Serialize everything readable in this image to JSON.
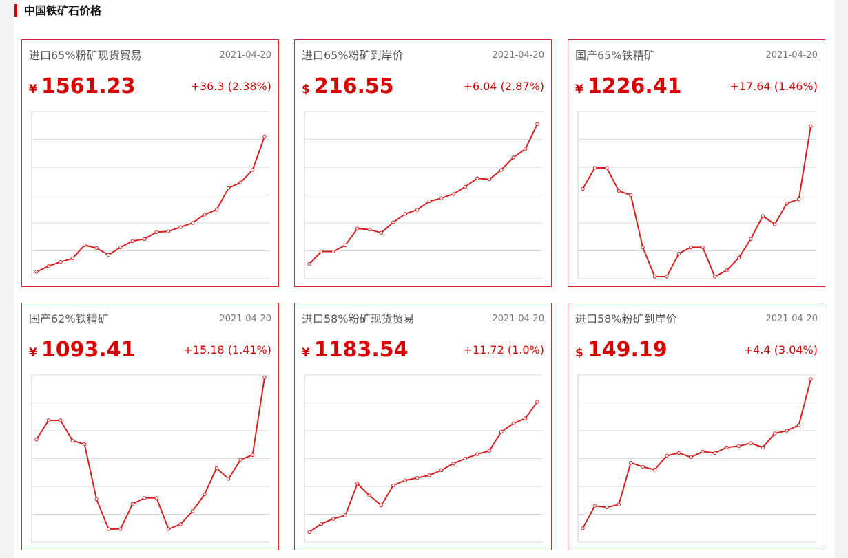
{
  "section": {
    "title": "中国铁矿石价格"
  },
  "colors": {
    "accent": "#d60000",
    "line": "#d81e1e"
  },
  "cards": [
    {
      "title": "进口65%粉矿现货贸易",
      "date": "2021-04-20",
      "currency": "¥",
      "price": "1561.23",
      "change": "+36.3 (2.38%)",
      "chart_data": {
        "type": "line",
        "grid": true,
        "ylim": [
          0,
          12
        ],
        "values": [
          0.5,
          0.9,
          1.2,
          1.45,
          2.4,
          2.2,
          1.7,
          2.25,
          2.7,
          2.85,
          3.35,
          3.4,
          3.7,
          4.0,
          4.6,
          4.95,
          6.5,
          6.9,
          7.8,
          10.2
        ]
      }
    },
    {
      "title": "进口65%粉矿到岸价",
      "date": "2021-04-20",
      "currency": "$",
      "price": "216.55",
      "change": "+6.04 (2.87%)",
      "chart_data": {
        "type": "line",
        "grid": true,
        "ylim": [
          0,
          8
        ],
        "values": [
          0.7,
          1.3,
          1.3,
          1.6,
          2.4,
          2.35,
          2.2,
          2.7,
          3.1,
          3.3,
          3.7,
          3.85,
          4.05,
          4.4,
          4.8,
          4.75,
          5.2,
          5.8,
          6.2,
          7.4
        ]
      }
    },
    {
      "title": "国产65%铁精矿",
      "date": "2021-04-20",
      "currency": "¥",
      "price": "1226.41",
      "change": "+17.64 (1.46%)",
      "chart_data": {
        "type": "line",
        "grid": true,
        "ylim": [
          0,
          4
        ],
        "values": [
          2.15,
          2.65,
          2.65,
          2.1,
          2.0,
          0.75,
          0.05,
          0.05,
          0.6,
          0.75,
          0.75,
          0.05,
          0.2,
          0.5,
          0.95,
          1.5,
          1.3,
          1.8,
          1.9,
          3.65
        ]
      }
    },
    {
      "title": "国产62%铁精矿",
      "date": "2021-04-20",
      "currency": "¥",
      "price": "1093.41",
      "change": "+15.18 (1.41%)",
      "chart_data": {
        "type": "line",
        "grid": true,
        "ylim": [
          0,
          7
        ],
        "values": [
          4.3,
          5.1,
          5.1,
          4.25,
          4.1,
          1.8,
          0.55,
          0.55,
          1.6,
          1.85,
          1.85,
          0.55,
          0.75,
          1.3,
          2.0,
          3.1,
          2.65,
          3.45,
          3.65,
          6.9
        ]
      }
    },
    {
      "title": "进口58%粉矿现货贸易",
      "date": "2021-04-20",
      "currency": "¥",
      "price": "1183.54",
      "change": "+11.72 (1.0%)",
      "chart_data": {
        "type": "line",
        "grid": true,
        "ylim": [
          0,
          5
        ],
        "values": [
          0.3,
          0.55,
          0.7,
          0.8,
          1.75,
          1.4,
          1.1,
          1.7,
          1.85,
          1.92,
          2.0,
          2.15,
          2.35,
          2.5,
          2.63,
          2.73,
          3.3,
          3.55,
          3.7,
          4.2
        ]
      }
    },
    {
      "title": "进口58%粉矿到岸价",
      "date": "2021-04-20",
      "currency": "$",
      "price": "149.19",
      "change": "+4.4 (3.04%)",
      "chart_data": {
        "type": "line",
        "grid": true,
        "ylim": [
          0,
          6
        ],
        "values": [
          0.5,
          1.3,
          1.25,
          1.35,
          2.85,
          2.7,
          2.6,
          3.1,
          3.2,
          3.05,
          3.25,
          3.2,
          3.4,
          3.45,
          3.55,
          3.4,
          3.9,
          4.0,
          4.2,
          5.85
        ]
      }
    }
  ]
}
